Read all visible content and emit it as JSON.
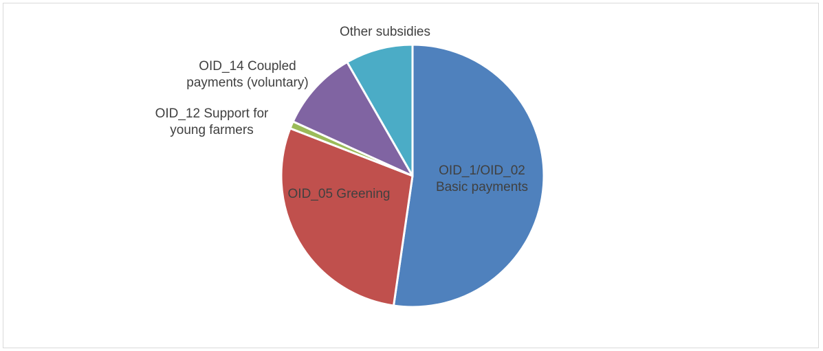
{
  "chart_data": {
    "type": "pie",
    "title": "",
    "categories": [
      "OID_1/OID_02 Basic payments",
      "OID_05 Greening",
      "OID_12 Support for young farmers",
      "OID_14 Coupled payments (voluntary)",
      "Other subsidies"
    ],
    "values": [
      52.3,
      28.6,
      0.9,
      9.9,
      8.3
    ],
    "value_unit": "percent share (estimated)",
    "colors": [
      "#4f81bd",
      "#c0504d",
      "#9bbb59",
      "#8064a2",
      "#4bacc6"
    ],
    "start_angle_deg": 0,
    "direction": "clockwise",
    "legend": "none"
  },
  "labels": [
    {
      "lines": [
        "OID_1/OID_02",
        "Basic payments"
      ]
    },
    {
      "lines": [
        "OID_05 Greening"
      ]
    },
    {
      "lines": [
        "OID_12 Support for",
        "young farmers"
      ]
    },
    {
      "lines": [
        "OID_14 Coupled",
        "payments (voluntary)"
      ]
    },
    {
      "lines": [
        "Other subsidies"
      ]
    }
  ]
}
